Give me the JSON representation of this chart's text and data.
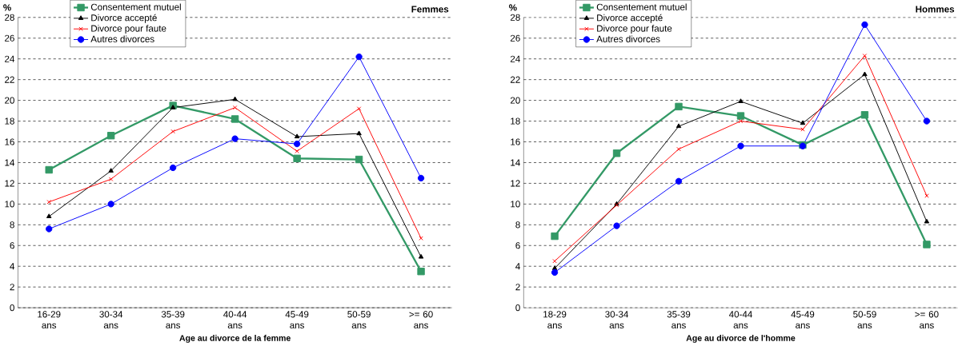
{
  "chart_data": [
    {
      "type": "line",
      "title": "Femmes",
      "ylabel": "%",
      "xlabel": "Age au divorce de la femme",
      "categories": [
        "16-29 ans",
        "30-34 ans",
        "35-39 ans",
        "40-44 ans",
        "45-49 ans",
        "50-59 ans",
        ">= 60 ans"
      ],
      "series": [
        {
          "name": "Consentement mutuel",
          "color": "#339966",
          "marker": "square",
          "values": [
            13.3,
            16.6,
            19.5,
            18.2,
            14.4,
            14.3,
            3.5
          ]
        },
        {
          "name": "Divorce accepté",
          "color": "#000000",
          "marker": "triangle",
          "values": [
            8.8,
            13.2,
            19.3,
            20.1,
            16.5,
            16.8,
            4.9
          ]
        },
        {
          "name": "Divorce pour faute",
          "color": "#ff0000",
          "marker": "cross",
          "values": [
            10.2,
            12.4,
            17.0,
            19.3,
            15.1,
            19.2,
            6.7
          ]
        },
        {
          "name": "Autres divorces",
          "color": "#0000ff",
          "marker": "circle",
          "values": [
            7.6,
            10.0,
            13.5,
            16.3,
            15.8,
            24.2,
            12.5
          ]
        }
      ],
      "ylim": [
        0,
        28
      ],
      "yticks": [
        0,
        2,
        4,
        6,
        8,
        10,
        12,
        14,
        16,
        18,
        20,
        22,
        24,
        26,
        28
      ],
      "grid": "y",
      "legend": "top left"
    },
    {
      "type": "line",
      "title": "Hommes",
      "ylabel": "%",
      "xlabel": "Age au divorce de l'homme",
      "categories": [
        "18-29 ans",
        "30-34 ans",
        "35-39 ans",
        "40-44 ans",
        "45-49 ans",
        "50-59 ans",
        ">= 60 ans"
      ],
      "series": [
        {
          "name": "Consentement mutuel",
          "color": "#339966",
          "marker": "square",
          "values": [
            6.9,
            14.9,
            19.4,
            18.5,
            15.7,
            18.6,
            6.1
          ]
        },
        {
          "name": "Divorce accepté",
          "color": "#000000",
          "marker": "triangle",
          "values": [
            3.8,
            10.0,
            17.5,
            19.9,
            17.8,
            22.5,
            8.3
          ]
        },
        {
          "name": "Divorce pour faute",
          "color": "#ff0000",
          "marker": "cross",
          "values": [
            4.5,
            9.9,
            15.3,
            18.0,
            17.2,
            24.3,
            10.8
          ]
        },
        {
          "name": "Autres divorces",
          "color": "#0000ff",
          "marker": "circle",
          "values": [
            3.4,
            7.9,
            12.2,
            15.6,
            15.6,
            27.3,
            18.0
          ]
        }
      ],
      "ylim": [
        0,
        28
      ],
      "yticks": [
        0,
        2,
        4,
        6,
        8,
        10,
        12,
        14,
        16,
        18,
        20,
        22,
        24,
        26,
        28
      ],
      "grid": "y",
      "legend": "top left"
    }
  ]
}
